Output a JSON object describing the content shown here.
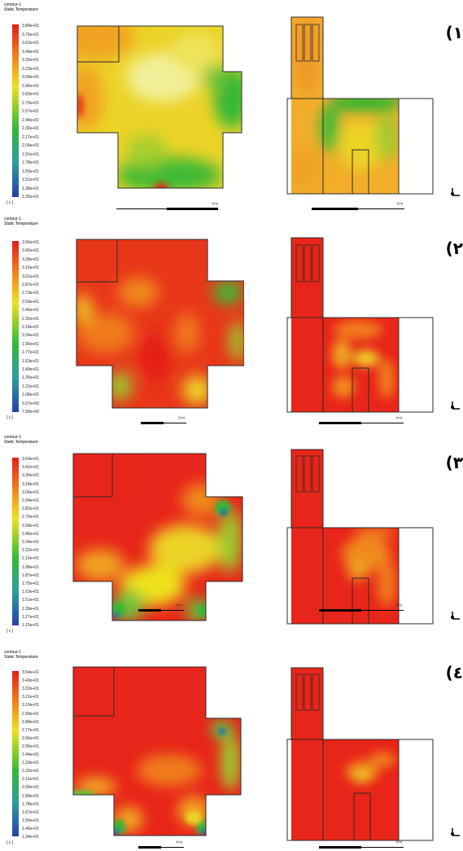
{
  "colors": {
    "red": "#e51b17",
    "orange": "#f08a1c",
    "yellow": "#eee21a",
    "green": "#33b936",
    "blue": "#2640a8"
  },
  "panels": [
    {
      "label": "(۱",
      "legend_title_1": "contour-1",
      "legend_title_2": "Static Temperature",
      "unit": "[ c ]",
      "ticks": [
        "3.89e+01",
        "3.75e+01",
        "3.62e+01",
        "3.49e+01",
        "3.35e+01",
        "3.23e+01",
        "3.09e+01",
        "2.96e+01",
        "2.83e+01",
        "2.70e+01",
        "2.57e+01",
        "2.44e+01",
        "2.30e+01",
        "2.17e+01",
        "2.04e+01",
        "1.91e+01",
        "1.78e+01",
        "1.65e+01",
        "1.51e+01",
        "1.38e+01",
        "1.25e+01"
      ],
      "scale_plan": "1(m)",
      "scale_section": "1(m)"
    },
    {
      "label": "(۲",
      "legend_title_1": "contour-1",
      "legend_title_2": "Static Temperature",
      "unit": "[ c ]",
      "ticks": [
        "3.56e+01",
        "3.42e+01",
        "3.28e+01",
        "3.15e+01",
        "3.01e+01",
        "2.87e+01",
        "2.73e+01",
        "2.59e+01",
        "2.46e+01",
        "2.32e+01",
        "2.18e+01",
        "2.04e+01",
        "1.90e+01",
        "1.77e+01",
        "1.63e+01",
        "1.49e+01",
        "1.35e+01",
        "1.21e+01",
        "1.08e+01",
        "9.37e+00",
        "7.99e+00"
      ],
      "scale_plan": "2(m)",
      "scale_section": "1(m)"
    },
    {
      "label": "(۳",
      "legend_title_1": "contour-1",
      "legend_title_2": "Static Temperature",
      "unit": "[ c ]",
      "ticks": [
        "3.54e+01",
        "3.42e+01",
        "3.30e+01",
        "3.18e+01",
        "3.06e+01",
        "2.94e+01",
        "2.82e+01",
        "2.70e+01",
        "2.58e+01",
        "2.46e+01",
        "2.34e+01",
        "2.22e+01",
        "2.10e+01",
        "1.98e+01",
        "1.87e+01",
        "1.75e+01",
        "1.63e+01",
        "1.51e+01",
        "1.39e+01",
        "1.27e+01",
        "1.15e+01"
      ],
      "scale_plan": "2(m)",
      "scale_section": "1(m)"
    },
    {
      "label": "(٤",
      "legend_title_1": "contour-1",
      "legend_title_2": "Static Temperature",
      "unit": "[ c ]",
      "ticks": [
        "3.54e+01",
        "3.43e+01",
        "3.32e+01",
        "3.21e+01",
        "3.10e+01",
        "2.99e+01",
        "2.88e+01",
        "2.77e+01",
        "2.66e+01",
        "2.55e+01",
        "2.44e+01",
        "2.33e+01",
        "2.22e+01",
        "2.11e+01",
        "2.00e+01",
        "1.89e+01",
        "1.78e+01",
        "1.67e+01",
        "1.56e+01",
        "1.45e+01",
        "1.34e+01"
      ],
      "scale_plan": "2(m)",
      "scale_section": "1(m)"
    }
  ]
}
